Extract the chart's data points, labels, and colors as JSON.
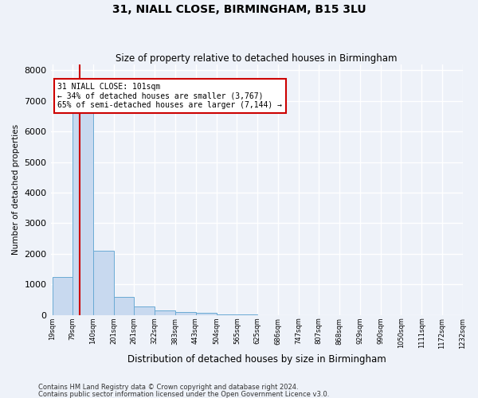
{
  "title": "31, NIALL CLOSE, BIRMINGHAM, B15 3LU",
  "subtitle": "Size of property relative to detached houses in Birmingham",
  "xlabel": "Distribution of detached houses by size in Birmingham",
  "ylabel": "Number of detached properties",
  "footnote1": "Contains HM Land Registry data © Crown copyright and database right 2024.",
  "footnote2": "Contains public sector information licensed under the Open Government Licence v3.0.",
  "annotation_title": "31 NIALL CLOSE: 101sqm",
  "annotation_line1": "← 34% of detached houses are smaller (3,767)",
  "annotation_line2": "65% of semi-detached houses are larger (7,144) →",
  "vline_x": 101,
  "bar_edges": [
    19,
    79,
    140,
    201,
    261,
    322,
    383,
    443,
    504,
    565,
    625,
    686,
    747,
    807,
    868,
    929,
    990,
    1050,
    1111,
    1172,
    1232
  ],
  "bar_heights": [
    1250,
    6700,
    2100,
    580,
    280,
    160,
    90,
    70,
    10,
    10,
    5,
    0,
    0,
    0,
    0,
    0,
    0,
    0,
    0,
    0
  ],
  "bar_color": "#c8d9ef",
  "bar_edgecolor": "#6aaad4",
  "vline_color": "#cc0000",
  "annotation_box_edgecolor": "#cc0000",
  "annotation_box_facecolor": "#ffffff",
  "background_color": "#eef2f9",
  "grid_color": "#ffffff",
  "ylim": [
    0,
    8200
  ],
  "yticks": [
    0,
    1000,
    2000,
    3000,
    4000,
    5000,
    6000,
    7000,
    8000
  ]
}
